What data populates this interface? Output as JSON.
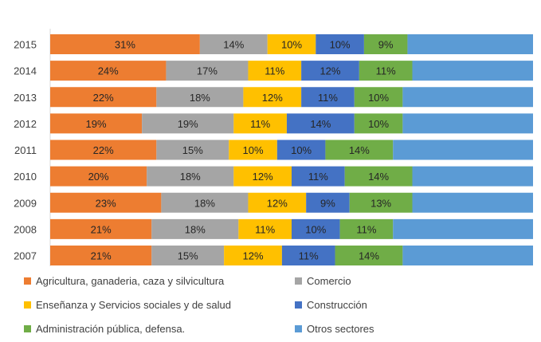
{
  "chart_data": {
    "type": "bar",
    "orientation": "horizontal",
    "stacked": "percent",
    "categories": [
      "2015",
      "2014",
      "2013",
      "2012",
      "2011",
      "2010",
      "2009",
      "2008",
      "2007"
    ],
    "series": [
      {
        "name": "Agricultura, ganaderia, caza y silvicultura",
        "color": "#ED7D31",
        "values": [
          31,
          24,
          22,
          19,
          22,
          20,
          23,
          21,
          21
        ],
        "labels": [
          "31%",
          "24%",
          "22%",
          "19%",
          "22%",
          "20%",
          "23%",
          "21%",
          "21%"
        ]
      },
      {
        "name": "Comercio",
        "color": "#A5A5A5",
        "values": [
          14,
          17,
          18,
          19,
          15,
          18,
          18,
          18,
          15
        ],
        "labels": [
          "14%",
          "17%",
          "18%",
          "19%",
          "15%",
          "18%",
          "18%",
          "18%",
          "15%"
        ]
      },
      {
        "name": "Enseñanza  y Servicios sociales y de salud",
        "color": "#FFC000",
        "values": [
          10,
          11,
          12,
          11,
          10,
          12,
          12,
          11,
          12
        ],
        "labels": [
          "10%",
          "11%",
          "12%",
          "11%",
          "10%",
          "12%",
          "12%",
          "11%",
          "12%"
        ]
      },
      {
        "name": "Construcción",
        "color": "#4472C4",
        "values": [
          10,
          12,
          11,
          14,
          10,
          11,
          9,
          10,
          11
        ],
        "labels": [
          "10%",
          "12%",
          "11%",
          "14%",
          "10%",
          "11%",
          "9%",
          "10%",
          "11%"
        ]
      },
      {
        "name": "Administración pública, defensa.",
        "color": "#70AD47",
        "values": [
          9,
          11,
          10,
          10,
          14,
          14,
          13,
          11,
          14
        ],
        "labels": [
          "9%",
          "11%",
          "10%",
          "10%",
          "14%",
          "14%",
          "13%",
          "11%",
          "14%"
        ]
      },
      {
        "name": "Otros sectores",
        "color": "#5B9BD5",
        "values": [
          26,
          25,
          27,
          27,
          29,
          25,
          25,
          29,
          27
        ],
        "labels": []
      }
    ],
    "legend_position": "bottom",
    "grid": false
  }
}
